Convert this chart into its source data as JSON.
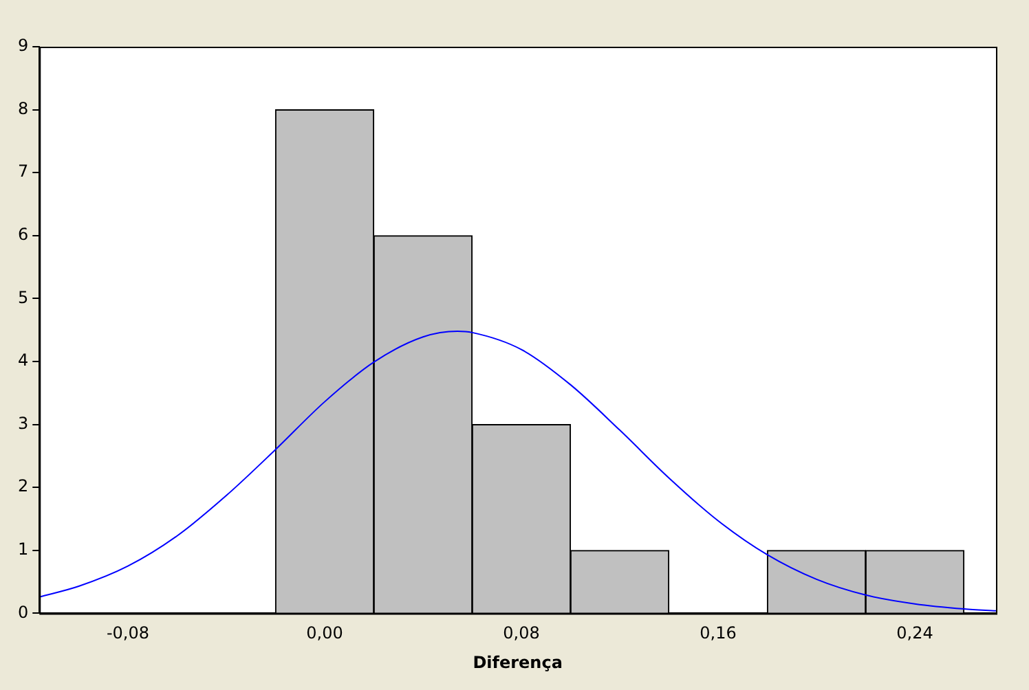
{
  "chart_data": {
    "type": "histogram",
    "xlabel": "Diferença",
    "bins": [
      -0.02,
      0.02,
      0.06,
      0.1,
      0.14,
      0.18,
      0.22,
      0.26
    ],
    "values": [
      8,
      6,
      3,
      1,
      0,
      1,
      1
    ],
    "color": "#c0c0c0",
    "series": [
      {
        "type": "line",
        "color": "#0000ff",
        "marker": "none",
        "x": [
          -0.116,
          -0.1,
          -0.08,
          -0.06,
          -0.04,
          -0.02,
          0.0,
          0.02,
          0.04,
          0.054,
          0.06,
          0.08,
          0.1,
          0.12,
          0.14,
          0.16,
          0.18,
          0.2,
          0.22,
          0.24,
          0.26,
          0.273
        ],
        "values": [
          0.26,
          0.43,
          0.75,
          1.23,
          1.87,
          2.6,
          3.36,
          3.99,
          4.39,
          4.48,
          4.46,
          4.19,
          3.63,
          2.91,
          2.15,
          1.47,
          0.93,
          0.54,
          0.29,
          0.15,
          0.07,
          0.04
        ]
      }
    ],
    "xlim": [
      -0.116,
      0.273
    ],
    "xticks": [
      {
        "value": -0.08,
        "label": "-0,08"
      },
      {
        "value": 0,
        "label": "0,00"
      },
      {
        "value": 0.08,
        "label": "0,08"
      },
      {
        "value": 0.16,
        "label": "0,16"
      },
      {
        "value": 0.24,
        "label": "0,24"
      }
    ],
    "ylim": [
      0,
      9
    ],
    "yticks": [
      0,
      1,
      2,
      3,
      4,
      5,
      6,
      7,
      8,
      9
    ],
    "grid": false,
    "legend": false
  }
}
